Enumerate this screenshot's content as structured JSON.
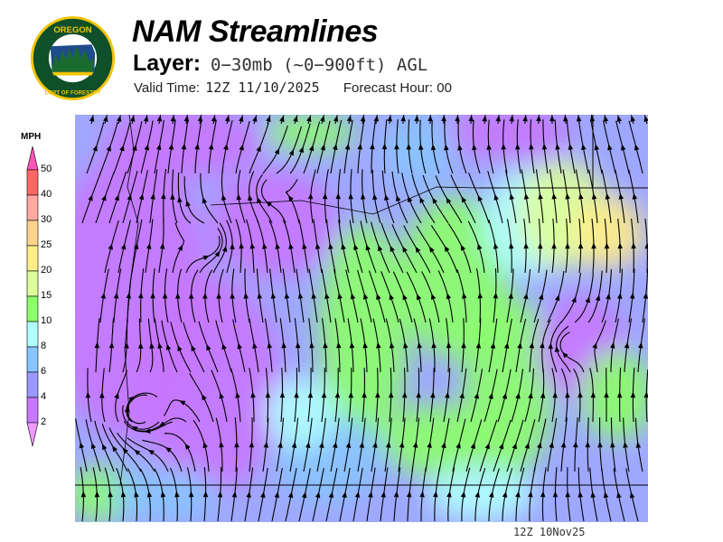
{
  "logo": {
    "text_top": "OREGON",
    "text_bottom": "DEPARTMENT OF FORESTRY"
  },
  "header": {
    "title": "NAM Streamlines",
    "layer_label": "Layer:",
    "layer_value": "0−30mb (~0−900ft) AGL",
    "valid_label": "Valid Time:",
    "valid_value": "12Z 11/10/2025",
    "forecast_label": "Forecast Hour:",
    "forecast_value": "00"
  },
  "legend": {
    "units": "MPH",
    "levels": [
      "50",
      "40",
      "30",
      "25",
      "20",
      "15",
      "10",
      "8",
      "6",
      "4",
      "2"
    ],
    "colors": [
      "#ff6666",
      "#ffaaa0",
      "#ffd38f",
      "#ffee88",
      "#ddff99",
      "#8cff6a",
      "#b0ffff",
      "#88c4ff",
      "#9999ff",
      "#c877ff"
    ],
    "over_color": "#ff55bb",
    "under_color": "#ee99ff"
  },
  "map": {
    "stamp": "12Z 10Nov25"
  }
}
